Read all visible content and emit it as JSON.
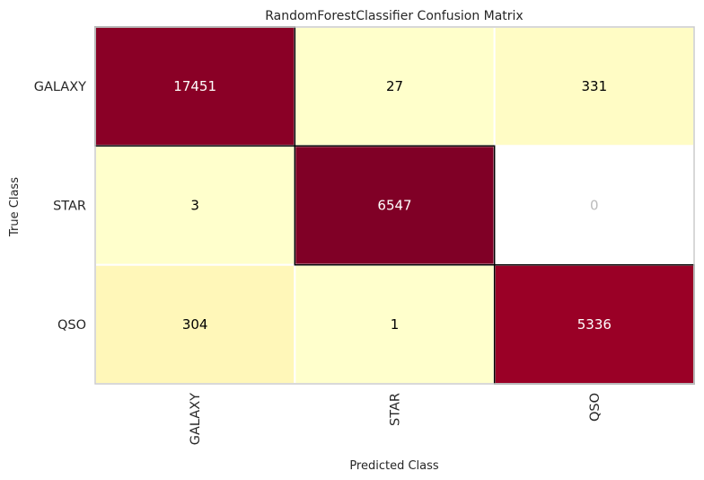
{
  "chart_data": {
    "type": "heatmap",
    "title": "RandomForestClassifier Confusion Matrix",
    "xlabel": "Predicted Class",
    "ylabel": "True Class",
    "x_categories": [
      "GALAXY",
      "STAR",
      "QSO"
    ],
    "y_categories": [
      "GALAXY",
      "STAR",
      "QSO"
    ],
    "values": [
      [
        17451,
        27,
        331
      ],
      [
        3,
        6547,
        0
      ],
      [
        304,
        1,
        5336
      ]
    ],
    "colormap": "YlOrRd",
    "zero_cell_color": "#ffffff",
    "zero_text_color": "#bbbbbb",
    "diagonal_outline_color": "#000000"
  }
}
